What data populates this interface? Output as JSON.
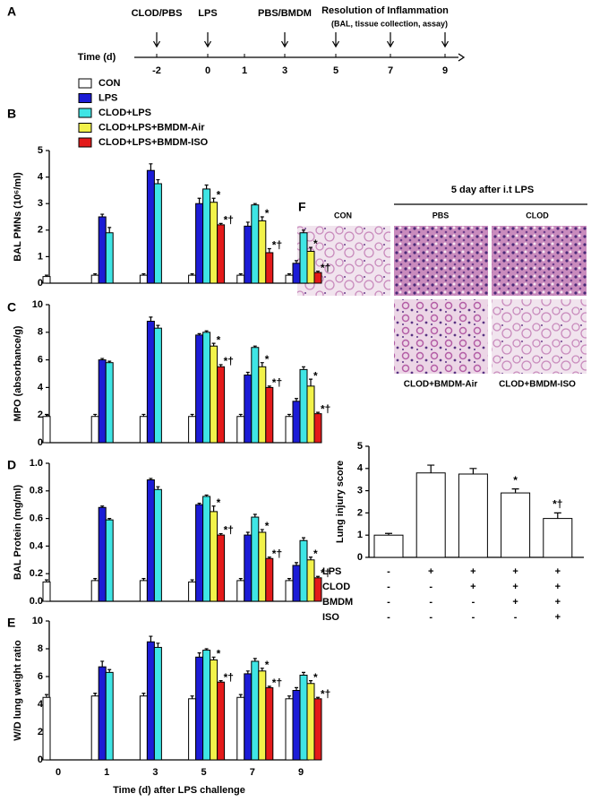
{
  "timeline": {
    "panel": "A",
    "axis_label": "Time (d)",
    "ticks": [
      -2,
      0,
      1,
      3,
      5,
      7,
      9
    ],
    "events": [
      {
        "label": "CLOD/PBS",
        "day": -2
      },
      {
        "label": "LPS",
        "day": 0
      },
      {
        "label": "PBS/BMDM",
        "day": 3
      }
    ],
    "resolution": {
      "label": "Resolution of Inflammation",
      "note": "(BAL, tissue collection, assay)",
      "days": [
        5,
        7,
        9
      ]
    }
  },
  "histology": {
    "panel": "F",
    "title": "5 day after i.t LPS",
    "labels": [
      "CON",
      "PBS",
      "CLOD",
      "CLOD+BMDM-Air",
      "CLOD+BMDM-ISO"
    ]
  },
  "conditions": {
    "rows": [
      {
        "label": "LPS",
        "signs": [
          "-",
          "+",
          "+",
          "+",
          "+"
        ]
      },
      {
        "label": "CLOD",
        "signs": [
          "-",
          "-",
          "+",
          "+",
          "+"
        ]
      },
      {
        "label": "BMDM",
        "signs": [
          "-",
          "-",
          "-",
          "+",
          "+"
        ]
      },
      {
        "label": "ISO",
        "signs": [
          "-",
          "-",
          "-",
          "-",
          "+"
        ]
      }
    ]
  },
  "chart_data": [
    {
      "type": "bar",
      "panel": "B",
      "ylabel": "BAL PMNs (10⁶/ml)",
      "categories": [
        null,
        null,
        null,
        null,
        null,
        null
      ],
      "ylim": [
        0,
        5
      ],
      "yticks": [
        0,
        1,
        2,
        3,
        4,
        5
      ],
      "series": [
        {
          "name": "CON",
          "color": "#ffffff",
          "values": [
            0.25,
            0.3,
            0.3,
            0.3,
            0.3,
            0.3
          ],
          "errors": [
            0.05,
            0.05,
            0.05,
            0.05,
            0.05,
            0.05
          ]
        },
        {
          "name": "LPS",
          "color": "#1c1cd6",
          "values": [
            null,
            2.5,
            4.25,
            3.0,
            2.15,
            0.75
          ],
          "errors": [
            null,
            0.1,
            0.25,
            0.2,
            0.15,
            0.1
          ]
        },
        {
          "name": "CLOD+LPS",
          "color": "#3fe5e5",
          "values": [
            null,
            1.9,
            3.75,
            3.55,
            2.95,
            1.9
          ],
          "errors": [
            null,
            0.2,
            0.15,
            0.15,
            0.05,
            0.1
          ]
        },
        {
          "name": "CLOD+LPS+BMDM-Air",
          "color": "#f2f24a",
          "values": [
            null,
            null,
            null,
            3.05,
            2.35,
            1.2
          ],
          "errors": [
            null,
            null,
            null,
            0.15,
            0.15,
            0.15
          ],
          "annotations": [
            null,
            null,
            null,
            "*",
            "*",
            "*"
          ]
        },
        {
          "name": "CLOD+LPS+BMDM-ISO",
          "color": "#e31a1a",
          "values": [
            null,
            null,
            null,
            2.2,
            1.15,
            0.4
          ],
          "errors": [
            null,
            null,
            null,
            0.05,
            0.15,
            0.05
          ],
          "annotations": [
            null,
            null,
            null,
            "*†",
            "*†",
            "*†"
          ]
        }
      ]
    },
    {
      "type": "bar",
      "panel": "C",
      "ylabel": "MPO (absorbance/g)",
      "categories": [
        null,
        null,
        null,
        null,
        null,
        null
      ],
      "ylim": [
        0,
        10
      ],
      "yticks": [
        0,
        2,
        4,
        6,
        8,
        10
      ],
      "series": [
        {
          "color": "#ffffff",
          "values": [
            1.9,
            1.9,
            1.9,
            1.9,
            1.9,
            1.9
          ],
          "errors": [
            0.15,
            0.15,
            0.15,
            0.15,
            0.15,
            0.15
          ]
        },
        {
          "color": "#1c1cd6",
          "values": [
            null,
            6.0,
            8.8,
            7.8,
            4.9,
            3.0
          ],
          "errors": [
            null,
            0.1,
            0.3,
            0.1,
            0.2,
            0.2
          ]
        },
        {
          "color": "#3fe5e5",
          "values": [
            null,
            5.8,
            8.3,
            8.0,
            6.9,
            5.3
          ],
          "errors": [
            null,
            0.1,
            0.2,
            0.1,
            0.1,
            0.2
          ]
        },
        {
          "color": "#f2f24a",
          "values": [
            null,
            null,
            null,
            7.0,
            5.5,
            4.1
          ],
          "errors": [
            null,
            null,
            null,
            0.2,
            0.3,
            0.5
          ],
          "annotations": [
            null,
            null,
            null,
            "*",
            "*",
            "*"
          ]
        },
        {
          "color": "#e31a1a",
          "values": [
            null,
            null,
            null,
            5.5,
            4.0,
            2.1
          ],
          "errors": [
            null,
            null,
            null,
            0.15,
            0.1,
            0.1
          ],
          "annotations": [
            null,
            null,
            null,
            "*†",
            "*†",
            "*†"
          ]
        }
      ]
    },
    {
      "type": "bar",
      "panel": "D",
      "ylabel": "BAL Protein (mg/ml)",
      "categories": [
        null,
        null,
        null,
        null,
        null,
        null
      ],
      "ylim": [
        0,
        1
      ],
      "yticks": [
        {
          "value": 0,
          "label": "0.0"
        },
        0.2,
        0.4,
        0.6,
        0.8,
        {
          "value": 1,
          "label": "1.0"
        }
      ],
      "series": [
        {
          "color": "#ffffff",
          "values": [
            0.14,
            0.15,
            0.15,
            0.14,
            0.15,
            0.15
          ],
          "errors": [
            0.015,
            0.015,
            0.015,
            0.015,
            0.015,
            0.015
          ]
        },
        {
          "color": "#1c1cd6",
          "values": [
            null,
            0.68,
            0.88,
            0.7,
            0.48,
            0.26
          ],
          "errors": [
            null,
            0.01,
            0.01,
            0.01,
            0.02,
            0.02
          ]
        },
        {
          "color": "#3fe5e5",
          "values": [
            null,
            0.59,
            0.81,
            0.76,
            0.61,
            0.44
          ],
          "errors": [
            null,
            0.01,
            0.02,
            0.01,
            0.02,
            0.02
          ]
        },
        {
          "color": "#f2f24a",
          "values": [
            null,
            null,
            null,
            0.65,
            0.5,
            0.3
          ],
          "errors": [
            null,
            null,
            null,
            0.04,
            0.02,
            0.02
          ],
          "annotations": [
            null,
            null,
            null,
            "*",
            "*",
            "*"
          ]
        },
        {
          "color": "#e31a1a",
          "values": [
            null,
            null,
            null,
            0.48,
            0.31,
            0.17
          ],
          "errors": [
            null,
            null,
            null,
            0.01,
            0.01,
            0.01
          ],
          "annotations": [
            null,
            null,
            null,
            "*†",
            "*†",
            "*†"
          ]
        }
      ]
    },
    {
      "type": "bar",
      "panel": "E",
      "ylabel": "W/D lung weight ratio",
      "xlabel": "Time (d) after LPS challenge",
      "categories": [
        "0",
        "1",
        "3",
        "5",
        "7",
        "9"
      ],
      "ylim": [
        0,
        10
      ],
      "yticks": [
        0,
        2,
        4,
        6,
        8,
        10
      ],
      "series": [
        {
          "color": "#ffffff",
          "values": [
            4.5,
            4.6,
            4.6,
            4.4,
            4.5,
            4.4
          ],
          "errors": [
            0.2,
            0.2,
            0.2,
            0.2,
            0.2,
            0.2
          ]
        },
        {
          "color": "#1c1cd6",
          "values": [
            null,
            6.7,
            8.5,
            7.4,
            6.2,
            5.0
          ],
          "errors": [
            null,
            0.4,
            0.4,
            0.3,
            0.2,
            0.2
          ]
        },
        {
          "color": "#3fe5e5",
          "values": [
            null,
            6.3,
            8.1,
            7.9,
            7.1,
            6.1
          ],
          "errors": [
            null,
            0.2,
            0.3,
            0.1,
            0.2,
            0.2
          ]
        },
        {
          "color": "#f2f24a",
          "values": [
            null,
            null,
            null,
            7.2,
            6.4,
            5.5
          ],
          "errors": [
            null,
            null,
            null,
            0.2,
            0.2,
            0.2
          ],
          "annotations": [
            null,
            null,
            null,
            "*",
            "*",
            "*"
          ]
        },
        {
          "color": "#e31a1a",
          "values": [
            null,
            null,
            null,
            5.6,
            5.2,
            4.4
          ],
          "errors": [
            null,
            null,
            null,
            0.1,
            0.1,
            0.1
          ],
          "annotations": [
            null,
            null,
            null,
            "*†",
            "*†",
            "*†"
          ]
        }
      ]
    },
    {
      "type": "bar",
      "ylabel": "Lung injury score",
      "categories": [
        null,
        null,
        null,
        null,
        null
      ],
      "ylim": [
        0,
        5
      ],
      "yticks": [
        0,
        1,
        2,
        3,
        4,
        5
      ],
      "series": [
        {
          "color": "#ffffff",
          "values": [
            1.0,
            3.8,
            3.75,
            2.9,
            1.75
          ],
          "errors": [
            0.08,
            0.35,
            0.25,
            0.18,
            0.25
          ],
          "annotations": [
            null,
            null,
            null,
            "*",
            "*†"
          ]
        }
      ]
    }
  ]
}
